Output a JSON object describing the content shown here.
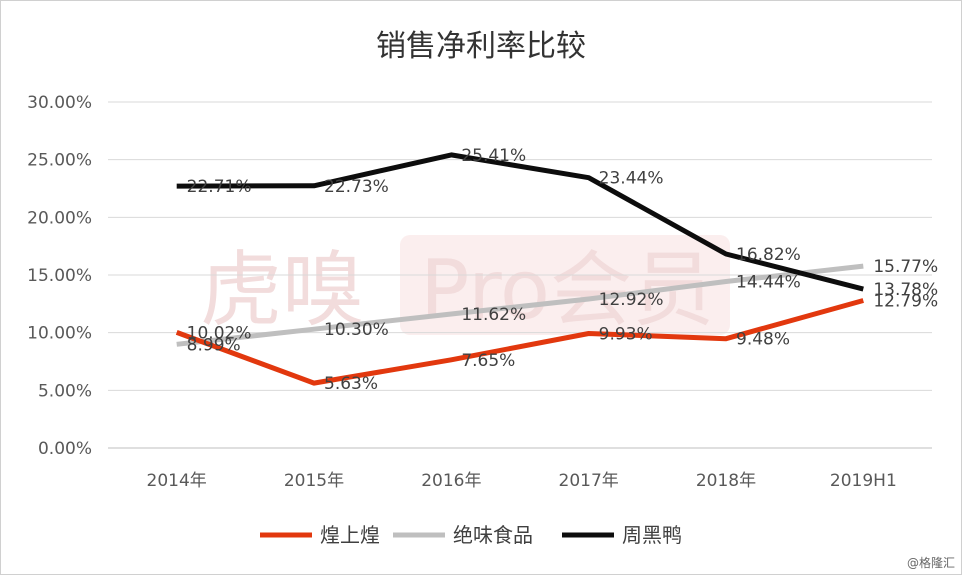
{
  "chart_data": {
    "type": "line",
    "title": "销售净利率比较",
    "categories": [
      "2014年",
      "2015年",
      "2016年",
      "2017年",
      "2018年",
      "2019H1"
    ],
    "y_ticks": [
      "0.00%",
      "5.00%",
      "10.00%",
      "15.00%",
      "20.00%",
      "25.00%",
      "30.00%"
    ],
    "ylim": [
      0,
      30
    ],
    "grid": true,
    "legend_position": "bottom",
    "series": [
      {
        "name": "煌上煌",
        "color": "#e2380e",
        "values": [
          10.02,
          5.63,
          7.65,
          9.93,
          9.48,
          12.79
        ],
        "labels": [
          "10.02%",
          "5.63%",
          "7.65%",
          "9.93%",
          "9.48%",
          "12.79%"
        ]
      },
      {
        "name": "绝味食品",
        "color": "#bfbfbf",
        "values": [
          8.99,
          10.3,
          11.62,
          12.92,
          14.44,
          15.77
        ],
        "labels": [
          "8.99%",
          "10.30%",
          "11.62%",
          "12.92%",
          "14.44%",
          "15.77%"
        ]
      },
      {
        "name": "周黑鸭",
        "color": "#0d0d0d",
        "values": [
          22.71,
          22.73,
          25.41,
          23.44,
          16.82,
          13.78
        ],
        "labels": [
          "22.71%",
          "22.73%",
          "25.41%",
          "23.44%",
          "16.82%",
          "13.78%"
        ]
      }
    ]
  },
  "watermark": {
    "brand": "虎嗅",
    "product": "Pro会员"
  },
  "credit": "@格隆汇"
}
